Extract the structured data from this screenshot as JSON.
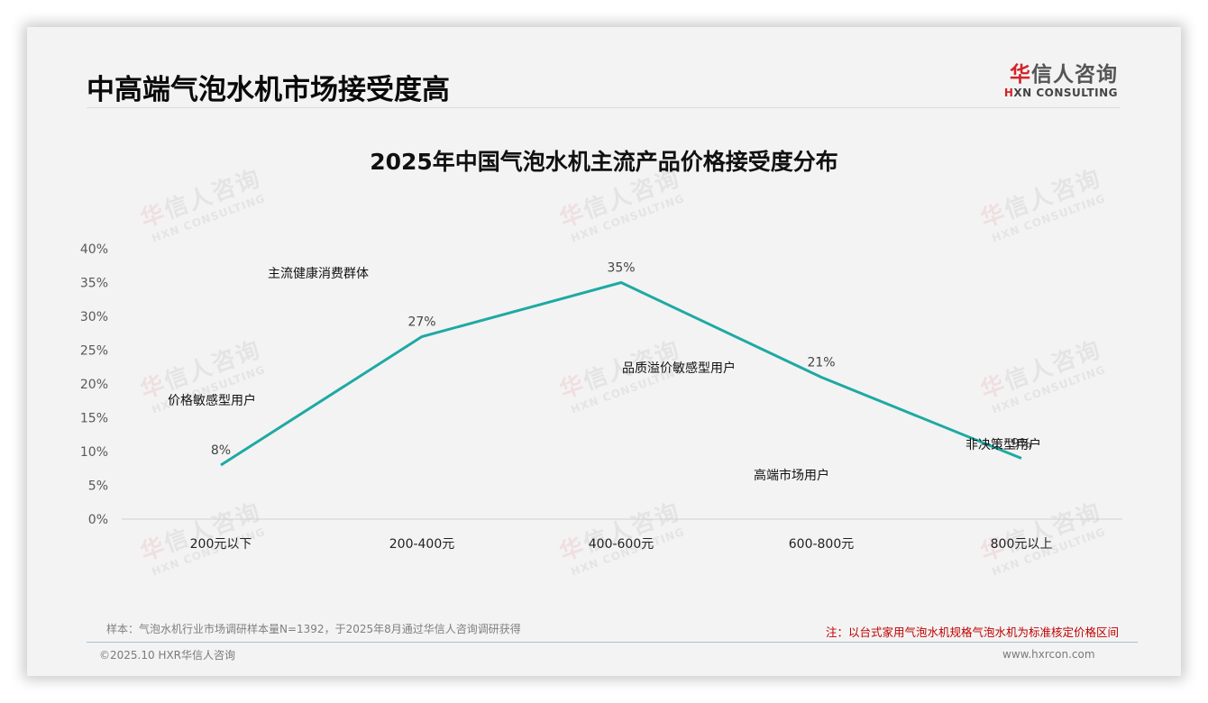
{
  "header": {
    "title": "中高端气泡水机市场接受度高",
    "logo": {
      "cn_red": "华",
      "cn_rest": "信人咨询",
      "en_red": "H",
      "en_rest": "XN CONSULTING"
    }
  },
  "watermark": {
    "cn_red": "华",
    "cn_rest": "信人咨询",
    "en": "HXN CONSULTING"
  },
  "chart_data": {
    "type": "line",
    "title": "2025年中国气泡水机主流产品价格接受度分布",
    "xlabel": "",
    "ylabel": "",
    "categories": [
      "200元以下",
      "200-400元",
      "400-600元",
      "600-800元",
      "800元以上"
    ],
    "values": [
      8,
      27,
      35,
      21,
      9
    ],
    "data_labels": [
      "8%",
      "27%",
      "35%",
      "21%",
      "9%"
    ],
    "ylim": [
      0,
      40
    ],
    "yticks": [
      "0%",
      "5%",
      "10%",
      "15%",
      "20%",
      "25%",
      "30%",
      "35%",
      "40%"
    ],
    "grid": false,
    "legend": null,
    "line_color": "#1fa9a3",
    "annotations": [
      {
        "text": "价格敏感型用户",
        "category": "200元以下"
      },
      {
        "text": "主流健康消费群体",
        "category": "200-400元"
      },
      {
        "text": "品质溢价敏感型用户",
        "category": "400-600元"
      },
      {
        "text": "高端市场用户",
        "category": "600-800元"
      },
      {
        "text": "非决策型用户",
        "category": "800元以上"
      }
    ]
  },
  "footer": {
    "sample_note": "样本：气泡水机行业市场调研样本量N=1392，于2025年8月通过华信人咨询调研获得",
    "red_note": "注：以台式家用气泡水机规格气泡水机为标准核定价格区间",
    "copyright": "©2025.10 HXR华信人咨询",
    "website": "www.hxrcon.com"
  },
  "colors": {
    "accent_line": "#1fa9a3",
    "brand_red": "#d2232a",
    "note_red": "#c00000",
    "background": "#f3f3f3"
  }
}
